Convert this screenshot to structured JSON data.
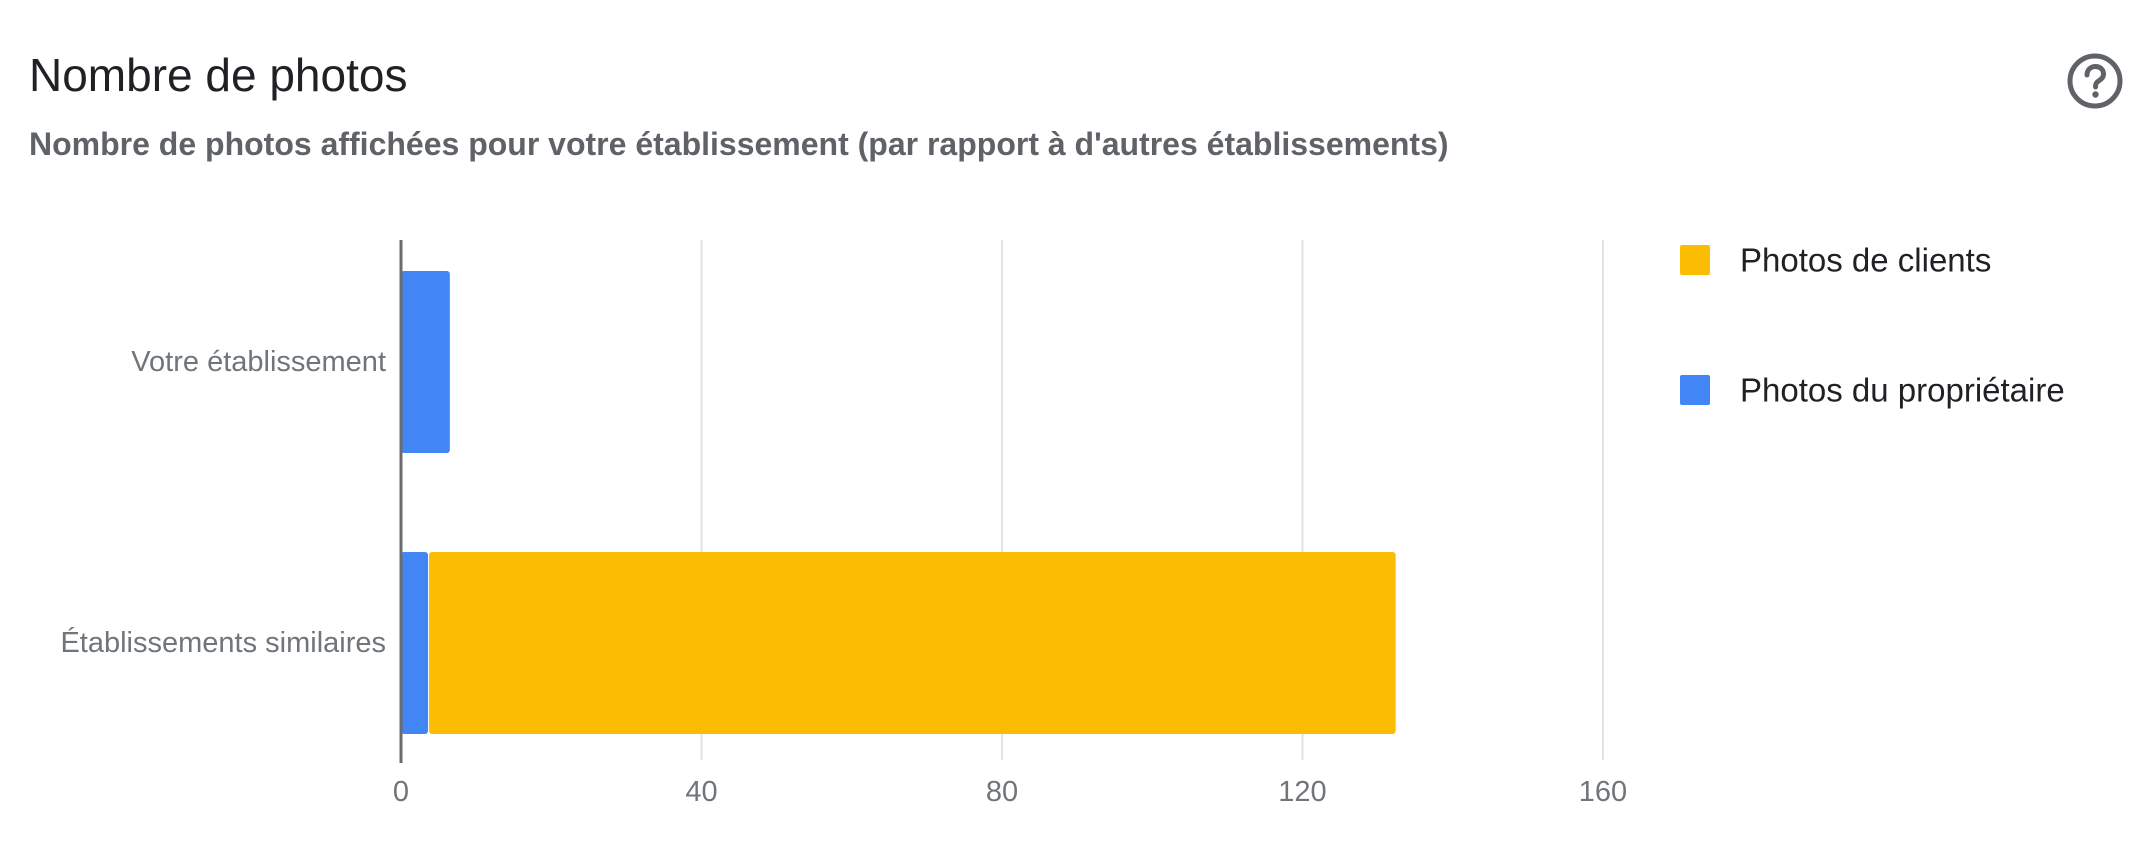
{
  "header": {
    "title": "Nombre de photos",
    "subtitle": "Nombre de photos affichées pour votre établissement (par rapport à d'autres établissements)",
    "help_icon": "help-circle-icon"
  },
  "colors": {
    "owner": "#4285f4",
    "customers": "#fbbc04",
    "grid": "#e3e3e3",
    "axis": "#6b6b6b",
    "label": "#70757a"
  },
  "chart_data": {
    "type": "bar",
    "orientation": "horizontal",
    "stacked": true,
    "categories": [
      "Votre établissement",
      "Établissements similaires"
    ],
    "series": [
      {
        "name": "Photos du propriétaire",
        "color": "#4285f4",
        "values": [
          6.5,
          3.6
        ]
      },
      {
        "name": "Photos de clients",
        "color": "#fbbc04",
        "values": [
          0,
          128.8
        ]
      }
    ],
    "xlim": [
      0,
      160
    ],
    "xticks": [
      0,
      40,
      80,
      120,
      160
    ],
    "grid": true,
    "legend": {
      "position": "right",
      "entries": [
        {
          "label": "Photos de clients",
          "color": "#fbbc04"
        },
        {
          "label": "Photos du propriétaire",
          "color": "#4285f4"
        }
      ]
    }
  }
}
